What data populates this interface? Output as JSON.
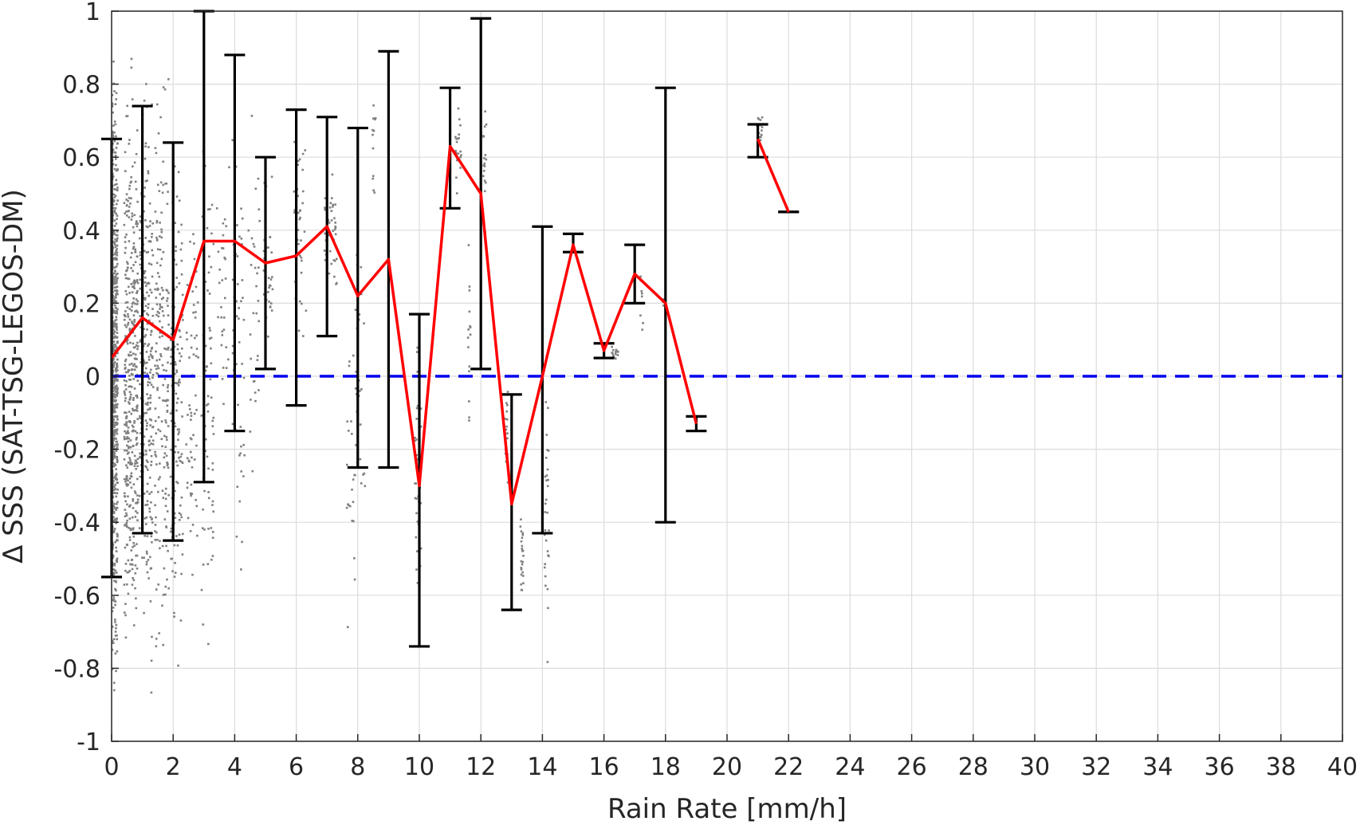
{
  "chart_data": {
    "type": "line",
    "xlabel": "Rain Rate [mm/h]",
    "ylabel": "Δ SSS (SAT-TSG-LEGOS-DM)",
    "xlim": [
      0,
      40
    ],
    "ylim": [
      -1,
      1
    ],
    "xticks": [
      0,
      2,
      4,
      6,
      8,
      10,
      12,
      14,
      16,
      18,
      20,
      22,
      24,
      26,
      28,
      30,
      32,
      34,
      36,
      38,
      40
    ],
    "yticks": [
      -1,
      -0.8,
      -0.6,
      -0.4,
      -0.2,
      0,
      0.2,
      0.4,
      0.6,
      0.8,
      1
    ],
    "xtick_labels": [
      "0",
      "2",
      "4",
      "6",
      "8",
      "10",
      "12",
      "14",
      "16",
      "18",
      "20",
      "22",
      "24",
      "26",
      "28",
      "30",
      "32",
      "34",
      "36",
      "38",
      "40"
    ],
    "ytick_labels": [
      "-1",
      "-0.8",
      "-0.6",
      "-0.4",
      "-0.2",
      "0",
      "0.2",
      "0.4",
      "0.6",
      "0.8",
      "1"
    ],
    "grid": true,
    "colors": {
      "mean_line": "#ff0000",
      "error_bars": "#000000",
      "zero_line": "#0000ee",
      "scatter": "#808080"
    },
    "reference_line": {
      "y": 0,
      "style": "dashed"
    },
    "series": [
      {
        "segments": [
          [
            {
              "x": 0,
              "y": 0.05
            },
            {
              "x": 1,
              "y": 0.16
            },
            {
              "x": 2,
              "y": 0.1
            },
            {
              "x": 3,
              "y": 0.37
            },
            {
              "x": 4,
              "y": 0.37
            },
            {
              "x": 5,
              "y": 0.31
            },
            {
              "x": 6,
              "y": 0.33
            },
            {
              "x": 7,
              "y": 0.41
            },
            {
              "x": 8,
              "y": 0.22
            },
            {
              "x": 9,
              "y": 0.32
            },
            {
              "x": 10,
              "y": -0.3
            },
            {
              "x": 11,
              "y": 0.63
            },
            {
              "x": 12,
              "y": 0.5
            },
            {
              "x": 13,
              "y": -0.35
            },
            {
              "x": 14,
              "y": 0.0
            },
            {
              "x": 15,
              "y": 0.36
            },
            {
              "x": 16,
              "y": 0.07
            },
            {
              "x": 17,
              "y": 0.28
            },
            {
              "x": 18,
              "y": 0.2
            },
            {
              "x": 19,
              "y": -0.13
            }
          ],
          [
            {
              "x": 21,
              "y": 0.65
            },
            {
              "x": 22,
              "y": 0.45
            }
          ]
        ]
      }
    ],
    "error_bars": [
      {
        "x": 0,
        "low": -0.55,
        "high": 0.65
      },
      {
        "x": 1,
        "low": -0.43,
        "high": 0.74
      },
      {
        "x": 2,
        "low": -0.45,
        "high": 0.64
      },
      {
        "x": 3,
        "low": -0.29,
        "high": 1.0
      },
      {
        "x": 4,
        "low": -0.15,
        "high": 0.88
      },
      {
        "x": 5,
        "low": 0.02,
        "high": 0.6
      },
      {
        "x": 6,
        "low": -0.08,
        "high": 0.73
      },
      {
        "x": 7,
        "low": 0.11,
        "high": 0.71
      },
      {
        "x": 8,
        "low": -0.25,
        "high": 0.68
      },
      {
        "x": 9,
        "low": -0.25,
        "high": 0.89
      },
      {
        "x": 10,
        "low": -0.74,
        "high": 0.17
      },
      {
        "x": 11,
        "low": 0.46,
        "high": 0.79
      },
      {
        "x": 12,
        "low": 0.02,
        "high": 0.98
      },
      {
        "x": 13,
        "low": -0.64,
        "high": -0.05
      },
      {
        "x": 14,
        "low": -0.43,
        "high": 0.41
      },
      {
        "x": 15,
        "low": 0.34,
        "high": 0.39
      },
      {
        "x": 16,
        "low": 0.05,
        "high": 0.09
      },
      {
        "x": 17,
        "low": 0.2,
        "high": 0.36
      },
      {
        "x": 18,
        "low": -0.4,
        "high": 0.79
      },
      {
        "x": 19,
        "low": -0.15,
        "high": -0.11
      },
      {
        "x": 21,
        "low": 0.6,
        "high": 0.69
      },
      {
        "x": 22,
        "low": 0.45,
        "high": 0.45
      }
    ],
    "scatter_clusters": [
      {
        "x": 0,
        "y_low": -1.0,
        "y_high": 1.0,
        "spread": 0.25,
        "count": 700
      },
      {
        "x": 0.5,
        "y_low": -1.0,
        "y_high": 1.0,
        "spread": 0.45,
        "count": 420
      },
      {
        "x": 1,
        "y_low": -1.0,
        "y_high": 1.0,
        "spread": 0.45,
        "count": 260
      },
      {
        "x": 1.5,
        "y_low": -1.0,
        "y_high": 1.0,
        "spread": 0.45,
        "count": 180
      },
      {
        "x": 2,
        "y_low": -0.9,
        "y_high": 0.8,
        "spread": 0.4,
        "count": 140
      },
      {
        "x": 2.5,
        "y_low": -0.8,
        "y_high": 0.8,
        "spread": 0.4,
        "count": 60
      },
      {
        "x": 3,
        "y_low": -0.95,
        "y_high": 0.9,
        "spread": 0.4,
        "count": 70
      },
      {
        "x": 3.5,
        "y_low": -0.4,
        "y_high": 0.8,
        "spread": 0.4,
        "count": 30
      },
      {
        "x": 4,
        "y_low": -0.75,
        "y_high": 0.8,
        "spread": 0.4,
        "count": 50
      },
      {
        "x": 4.5,
        "y_low": -0.5,
        "y_high": 0.8,
        "spread": 0.4,
        "count": 30
      },
      {
        "x": 5,
        "y_low": 0.0,
        "y_high": 0.6,
        "spread": 0.3,
        "count": 35
      },
      {
        "x": 6,
        "y_low": -0.05,
        "y_high": 0.8,
        "spread": 0.4,
        "count": 40
      },
      {
        "x": 7,
        "y_low": 0.1,
        "y_high": 0.7,
        "spread": 0.4,
        "count": 40
      },
      {
        "x": 7.7,
        "y_low": -0.8,
        "y_high": 0.3,
        "spread": 0.3,
        "count": 25
      },
      {
        "x": 8,
        "y_low": -0.5,
        "y_high": 0.5,
        "spread": 0.3,
        "count": 25
      },
      {
        "x": 8.5,
        "y_low": 0.4,
        "y_high": 0.9,
        "spread": 0.1,
        "count": 12
      },
      {
        "x": 9.9,
        "y_low": -0.7,
        "y_high": 0.2,
        "spread": 0.2,
        "count": 35
      },
      {
        "x": 11.2,
        "y_low": 0.45,
        "y_high": 0.8,
        "spread": 0.2,
        "count": 20
      },
      {
        "x": 11.6,
        "y_low": -0.4,
        "y_high": 0.6,
        "spread": 0.1,
        "count": 15
      },
      {
        "x": 12.1,
        "y_low": 0.2,
        "y_high": 0.9,
        "spread": 0.1,
        "count": 20
      },
      {
        "x": 12.8,
        "y_low": -0.35,
        "y_high": 0.05,
        "spread": 0.1,
        "count": 20
      },
      {
        "x": 13.3,
        "y_low": -0.7,
        "y_high": -0.3,
        "spread": 0.1,
        "count": 25
      },
      {
        "x": 14.1,
        "y_low": -0.85,
        "y_high": 0.1,
        "spread": 0.15,
        "count": 30
      },
      {
        "x": 16.3,
        "y_low": 0.03,
        "y_high": 0.1,
        "spread": 0.2,
        "count": 14
      },
      {
        "x": 17.2,
        "y_low": 0.1,
        "y_high": 0.35,
        "spread": 0.1,
        "count": 8
      },
      {
        "x": 17.9,
        "y_low": 0.18,
        "y_high": 0.23,
        "spread": 0.1,
        "count": 6
      },
      {
        "x": 21,
        "y_low": 0.6,
        "y_high": 0.75,
        "spread": 0.2,
        "count": 18
      }
    ]
  }
}
